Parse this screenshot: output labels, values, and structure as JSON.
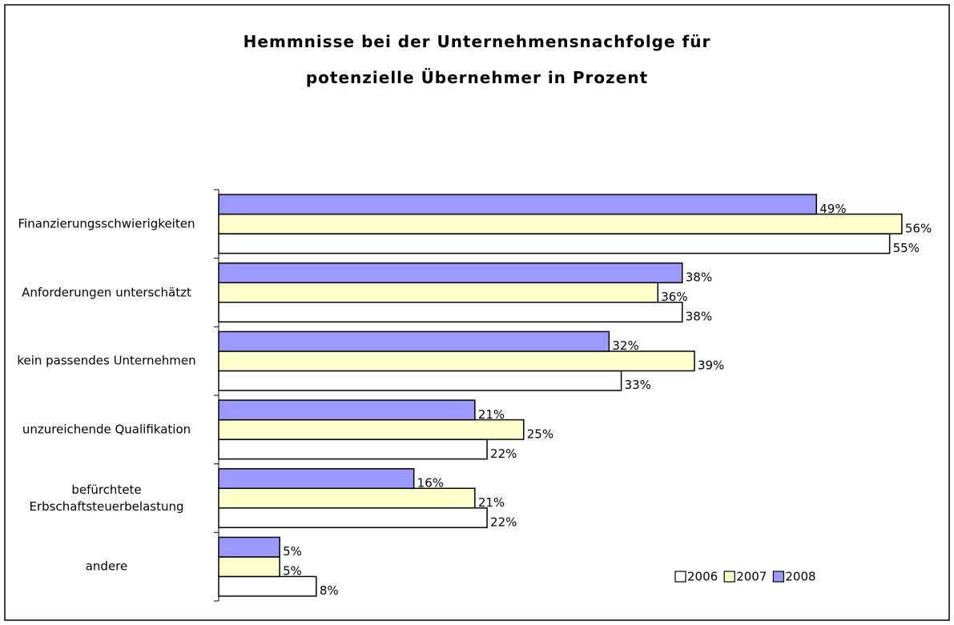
{
  "chart_data": {
    "type": "barh",
    "title": [
      "Hemmnisse bei der Unternehmensnachfolge für",
      "potenzielle Übernehmer in Prozent"
    ],
    "categories": [
      "Finanzierungsschwierigkeiten",
      "Anforderungen unterschätzt",
      "kein passendes Unternehmen",
      "unzureichende Qualifikation",
      "befürchtete Erbschaftsteuerbelastung",
      "andere"
    ],
    "series": [
      {
        "name": "2006",
        "color": "#ffffff",
        "values": [
          55,
          38,
          33,
          22,
          22,
          8
        ],
        "value_labels": [
          "55%",
          "38%",
          "33%",
          "22%",
          "22%",
          "8%"
        ]
      },
      {
        "name": "2007",
        "color": "#ffffcc",
        "values": [
          56,
          36,
          39,
          25,
          21,
          5
        ],
        "value_labels": [
          "56%",
          "36%",
          "39%",
          "25%",
          "21%",
          "5%"
        ]
      },
      {
        "name": "2008",
        "color": "#9999ff",
        "values": [
          49,
          38,
          32,
          21,
          16,
          5
        ],
        "value_labels": [
          "49%",
          "38%",
          "32%",
          "21%",
          "16%",
          "5%"
        ]
      }
    ],
    "legend": "bottom-right"
  }
}
